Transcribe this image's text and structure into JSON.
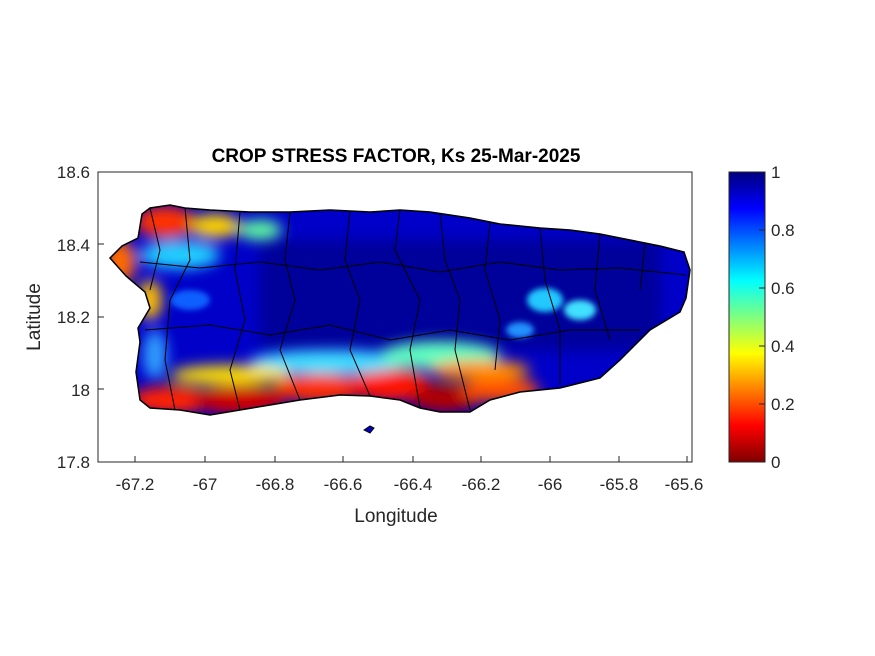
{
  "chart_data": {
    "type": "heatmap",
    "title": "CROP STRESS FACTOR, Ks  25-Mar-2025",
    "xlabel": "Longitude",
    "ylabel": "Latitude",
    "xlim": [
      -67.3,
      -65.58
    ],
    "ylim": [
      17.8,
      18.6
    ],
    "x_ticks": [
      "-67.2",
      "-67",
      "-66.8",
      "-66.6",
      "-66.4",
      "-66.2",
      "-66",
      "-65.8",
      "-65.6"
    ],
    "y_ticks": [
      "17.8",
      "18",
      "18.2",
      "18.4",
      "18.6"
    ],
    "colorbar": {
      "colormap": "jet",
      "range": [
        0,
        1
      ],
      "ticks": [
        "0",
        "0.2",
        "0.4",
        "0.6",
        "0.8",
        "1"
      ]
    },
    "summary": {
      "dominant_value": 1.0,
      "low_stress_regions": [
        {
          "location": "southern coast",
          "value_range": [
            0.0,
            0.3
          ]
        },
        {
          "location": "western / northwestern coast",
          "value_range": [
            0.1,
            0.5
          ]
        }
      ],
      "moderate_regions": [
        {
          "location": "east-central interior",
          "value_range": [
            0.6,
            0.8
          ]
        }
      ]
    }
  },
  "colors": {
    "outline": "#000000",
    "axis": "#262626",
    "jet_low": "#7f0000",
    "jet_high": "#00007f"
  }
}
